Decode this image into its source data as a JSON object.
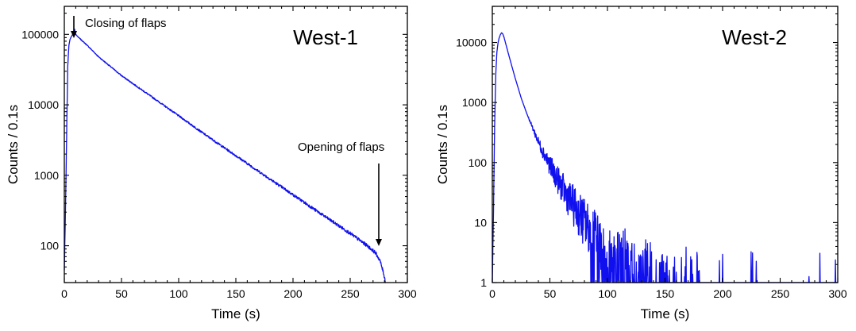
{
  "chart_data": [
    {
      "type": "line",
      "title": "West-1",
      "xlabel": "Time (s)",
      "ylabel": "Counts / 0.1s",
      "xlim": [
        0,
        300
      ],
      "ylim": [
        30,
        250000
      ],
      "yscale": "log",
      "xticks": [
        0,
        50,
        100,
        150,
        200,
        250,
        300
      ],
      "xtick_labels": [
        "0",
        "50",
        "100",
        "150",
        "200",
        "250",
        "300"
      ],
      "yticks": [
        100,
        1000,
        10000,
        100000
      ],
      "ytick_labels": [
        "100",
        "1000",
        "10000",
        "100000"
      ],
      "grid": false,
      "series_color": "#1010ee",
      "series": [
        {
          "x": [
            0,
            1,
            2,
            3,
            4,
            5,
            6,
            7,
            8,
            9,
            10,
            12,
            15,
            20,
            30,
            50,
            75,
            100,
            125,
            150,
            175,
            200,
            225,
            250,
            265,
            272,
            276,
            279,
            281
          ],
          "y": [
            45,
            300,
            3500,
            35000,
            70000,
            85000,
            92000,
            98000,
            108000,
            118000,
            100000,
            92000,
            83000,
            70000,
            48000,
            26000,
            13500,
            7000,
            3600,
            1900,
            1000,
            530,
            280,
            150,
            100,
            80,
            62,
            42,
            30
          ]
        }
      ],
      "annotations": [
        {
          "text": "Closing of flaps",
          "x": 8,
          "y": 118000
        },
        {
          "text": "Opening of flaps",
          "x": 275,
          "y": 75
        }
      ]
    },
    {
      "type": "line",
      "title": "West-2",
      "xlabel": "Time (s)",
      "ylabel": "Counts / 0.1s",
      "xlim": [
        0,
        300
      ],
      "ylim": [
        1,
        40000
      ],
      "yscale": "log",
      "xticks": [
        0,
        50,
        100,
        150,
        200,
        250,
        300
      ],
      "xtick_labels": [
        "0",
        "50",
        "100",
        "150",
        "200",
        "250",
        "300"
      ],
      "yticks": [
        1,
        10,
        100,
        1000,
        10000
      ],
      "ytick_labels": [
        "1",
        "10",
        "100",
        "1000",
        "10000"
      ],
      "grid": false,
      "series_color": "#1010ee",
      "series": [
        {
          "x": [
            0,
            1,
            2,
            3,
            4,
            5,
            6,
            7,
            8,
            9,
            10,
            12,
            15,
            20,
            25,
            30,
            35,
            40,
            45,
            50,
            55,
            60,
            65,
            70,
            75,
            80,
            85,
            90,
            95,
            100,
            105,
            110,
            115,
            120,
            125,
            130,
            135,
            140,
            145,
            150,
            160,
            170,
            175,
            185,
            195,
            200,
            205,
            210,
            215,
            220,
            250,
            300
          ],
          "y": [
            1,
            15,
            400,
            3000,
            7000,
            10000,
            12000,
            13500,
            14500,
            14000,
            12500,
            9000,
            5500,
            2500,
            1200,
            650,
            380,
            220,
            140,
            90,
            60,
            40,
            28,
            20,
            14,
            10,
            7,
            5,
            4,
            3,
            2.5,
            2,
            2,
            1.6,
            1.5,
            1.4,
            1.3,
            1.2,
            1.2,
            1.1,
            1,
            1,
            1,
            1,
            1,
            1,
            1,
            1,
            1,
            1,
            1,
            1
          ]
        }
      ],
      "annotations": []
    }
  ]
}
